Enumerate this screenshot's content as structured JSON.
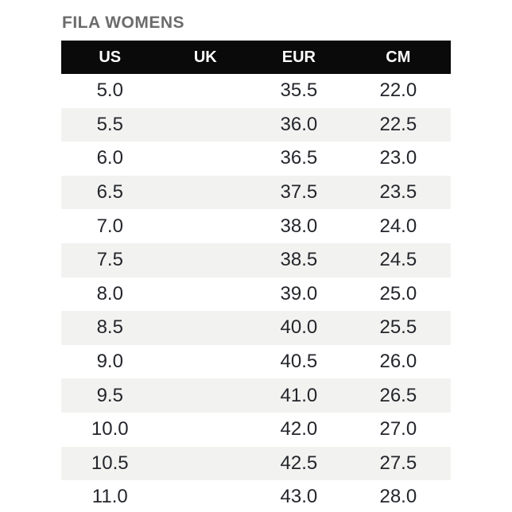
{
  "title": "FILA WOMENS",
  "size_chart": {
    "columns": [
      "US",
      "UK",
      "EUR",
      "CM"
    ],
    "rows": [
      [
        "5.0",
        "",
        "35.5",
        "22.0"
      ],
      [
        "5.5",
        "",
        "36.0",
        "22.5"
      ],
      [
        "6.0",
        "",
        "36.5",
        "23.0"
      ],
      [
        "6.5",
        "",
        "37.5",
        "23.5"
      ],
      [
        "7.0",
        "",
        "38.0",
        "24.0"
      ],
      [
        "7.5",
        "",
        "38.5",
        "24.5"
      ],
      [
        "8.0",
        "",
        "39.0",
        "25.0"
      ],
      [
        "8.5",
        "",
        "40.0",
        "25.5"
      ],
      [
        "9.0",
        "",
        "40.5",
        "26.0"
      ],
      [
        "9.5",
        "",
        "41.0",
        "26.5"
      ],
      [
        "10.0",
        "",
        "42.0",
        "27.0"
      ],
      [
        "10.5",
        "",
        "42.5",
        "27.5"
      ],
      [
        "11.0",
        "",
        "43.0",
        "28.0"
      ]
    ]
  },
  "colors": {
    "title_text": "#6b6b6b",
    "header_background": "#0a0a0a",
    "header_text": "#ffffff",
    "row_stripe": "#f2f2f0",
    "row_text": "#24262c",
    "page_background": "#ffffff"
  }
}
